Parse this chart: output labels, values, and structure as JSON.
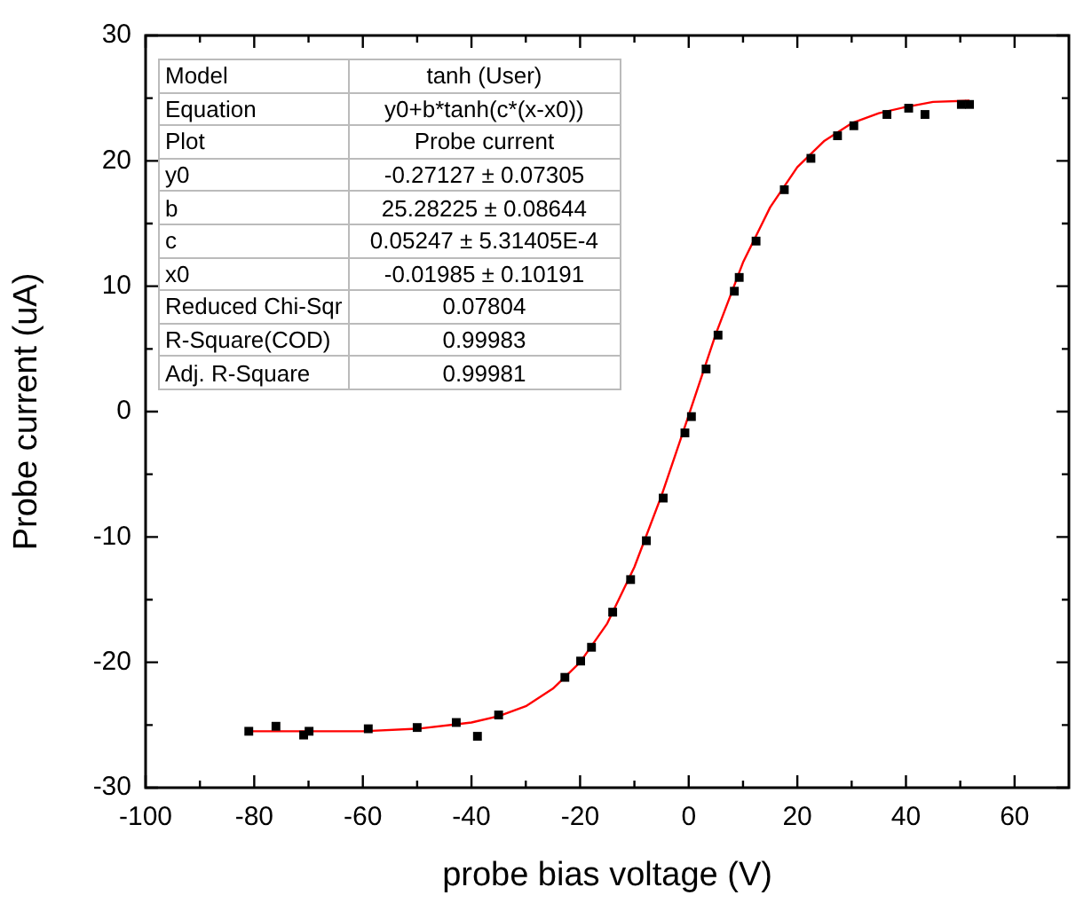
{
  "chart_data": {
    "type": "scatter",
    "xlabel": "probe bias voltage (V)",
    "ylabel": "Probe current (uA)",
    "xlim": [
      -100,
      70
    ],
    "ylim": [
      -30,
      30
    ],
    "xticks": [
      -100,
      {
        "value": -90,
        "label": null
      },
      -80,
      {
        "value": -70,
        "label": null
      },
      -60,
      {
        "value": -50,
        "label": null
      },
      -40,
      {
        "value": -30,
        "label": null
      },
      -20,
      {
        "value": -10,
        "label": null
      },
      0,
      {
        "value": 10,
        "label": null
      },
      20,
      {
        "value": 30,
        "label": null
      },
      40,
      {
        "value": 50,
        "label": null
      },
      60
    ],
    "yticks": [
      -30,
      {
        "value": -25,
        "label": null
      },
      -20,
      {
        "value": -15,
        "label": null
      },
      -10,
      {
        "value": -5,
        "label": null
      },
      0,
      {
        "value": 5,
        "label": null
      },
      10,
      {
        "value": 15,
        "label": null
      },
      20,
      {
        "value": 25,
        "label": null
      },
      30
    ],
    "grid": false,
    "legend": false,
    "series": [
      {
        "color": "#000000",
        "marker": "square",
        "x": [
          -81,
          -76,
          -70.9,
          -69.9,
          -59,
          -50,
          -42.8,
          -38.9,
          -35,
          -22.8,
          -19.9,
          -17.9,
          -14,
          -10.7,
          -7.8,
          -4.7,
          -0.7,
          0.5,
          3.2,
          5.4,
          8.4,
          9.3,
          12.4,
          17.6,
          22.5,
          27.4,
          30.4,
          36.5,
          40.5,
          43.5,
          50.2,
          51.7
        ],
        "values": [
          -25.5,
          -25.1,
          -25.8,
          -25.5,
          -25.3,
          -25.2,
          -24.8,
          -25.9,
          -24.2,
          -21.2,
          -19.9,
          -18.8,
          -16,
          -13.4,
          -10.3,
          -6.9,
          -1.7,
          -0.4,
          3.4,
          6.1,
          9.6,
          10.7,
          13.6,
          17.7,
          20.2,
          22,
          22.8,
          23.7,
          24.2,
          23.7,
          24.5,
          24.5
        ]
      },
      {
        "type": "line",
        "color": "#ff0000",
        "marker": "none",
        "line_style": "solid",
        "x": [
          -81,
          -70,
          -60,
          -50,
          -40,
          -35,
          -30,
          -25,
          -20,
          -15,
          -10,
          -5,
          0,
          5,
          10,
          15,
          20,
          25,
          30,
          35,
          40,
          45,
          51.7
        ],
        "values": [
          -25.5,
          -25.5,
          -25.5,
          -25.3,
          -24.8,
          -24.3,
          -23.5,
          -22.1,
          -20,
          -16.9,
          -12.4,
          -6.7,
          -0.3,
          6.2,
          11.9,
          16.3,
          19.5,
          21.6,
          23,
          23.8,
          24.3,
          24.7,
          24.8
        ]
      }
    ],
    "annotations": [
      "Model",
      "tanh (User)",
      "Equation",
      "y0+b*tanh(c*(x-x0))",
      "Plot",
      "Probe current",
      "y0",
      "-0.27127 ± 0.07305",
      "b",
      "25.28225 ± 0.08644",
      "c",
      "0.05247 ± 5.31405E-4",
      "x0",
      "-0.01985 ± 0.10191",
      "Reduced Chi-Sqr",
      "0.07804",
      "R-Square(COD)",
      "0.99983",
      "Adj. R-Square",
      "0.99981"
    ]
  }
}
